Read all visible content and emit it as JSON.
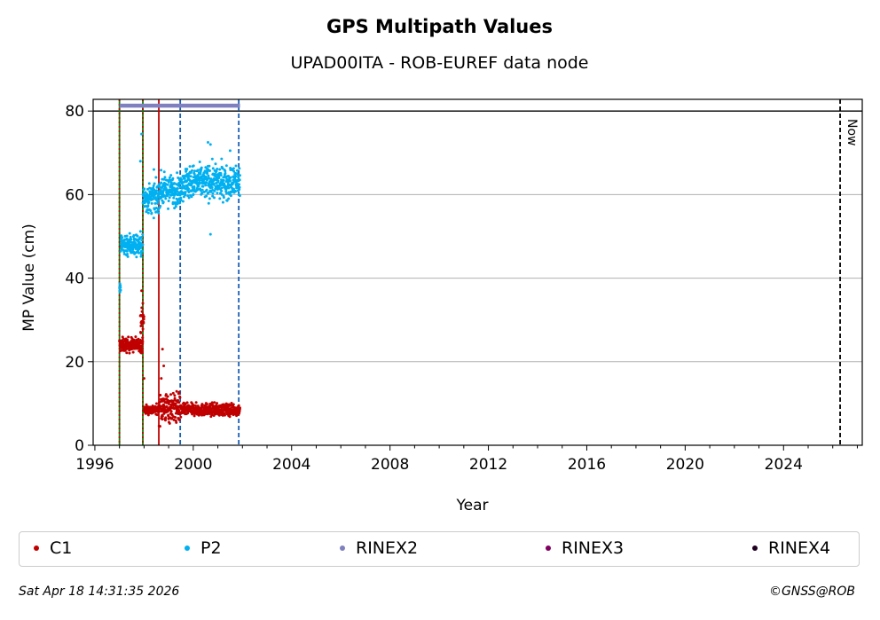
{
  "chart_data": {
    "type": "scatter",
    "title": "GPS Multipath Values",
    "subtitle": "UPAD00ITA - ROB-EUREF data node",
    "xlabel": "Year",
    "ylabel": "MP Value (cm)",
    "xlim": [
      1995.93,
      2027.2
    ],
    "ylim": [
      0,
      82.8
    ],
    "xticks": [
      1996,
      2000,
      2004,
      2008,
      2012,
      2016,
      2020,
      2024
    ],
    "xtick_labels": [
      "1996",
      "2000",
      "2004",
      "2008",
      "2012",
      "2016",
      "2020",
      "2024"
    ],
    "yticks": [
      0,
      20,
      40,
      60,
      80
    ],
    "ytick_labels": [
      "0",
      "20",
      "40",
      "60",
      "80"
    ],
    "grid": "horizontal",
    "reference_line": {
      "y": 80,
      "color": "#000000"
    },
    "now_line": {
      "x": 2026.3,
      "label": "Now",
      "color": "#000000"
    },
    "vertical_lines": [
      {
        "x": 1997.0,
        "color": "#008000",
        "style": "solid"
      },
      {
        "x": 1997.0,
        "color": "#c00000",
        "style": "dotted"
      },
      {
        "x": 1997.95,
        "color": "#008000",
        "style": "solid"
      },
      {
        "x": 1997.95,
        "color": "#c00000",
        "style": "dotted"
      },
      {
        "x": 1998.6,
        "color": "#c00000",
        "style": "solid"
      },
      {
        "x": 1999.47,
        "color": "#1a5fb4",
        "style": "dashed"
      },
      {
        "x": 2001.85,
        "color": "#1a5fb4",
        "style": "dashed"
      }
    ],
    "series": [
      {
        "name": "C1",
        "color": "#c00000",
        "segments": [
          {
            "x_start": 1997.0,
            "x_end": 1997.95,
            "mean": 24,
            "spread": 1.2
          },
          {
            "x_start": 1997.85,
            "x_end": 1998.0,
            "mean": 30,
            "spread": 2
          },
          {
            "x_start": 1998.0,
            "x_end": 1998.6,
            "mean": 8.5,
            "spread": 0.8
          },
          {
            "x_start": 1998.6,
            "x_end": 1999.5,
            "mean": 9,
            "spread": 2.5
          },
          {
            "x_start": 1999.5,
            "x_end": 2001.9,
            "mean": 8.5,
            "spread": 1
          }
        ],
        "outliers": [
          [
            1997.0,
            25
          ],
          [
            1997.9,
            37
          ],
          [
            1997.95,
            34
          ],
          [
            1998.0,
            16
          ],
          [
            1998.75,
            23
          ],
          [
            1998.8,
            19
          ],
          [
            1998.7,
            16
          ]
        ]
      },
      {
        "name": "P2",
        "color": "#00b0f0",
        "segments": [
          {
            "x_start": 1997.0,
            "x_end": 1997.05,
            "mean": 37.5,
            "spread": 1
          },
          {
            "x_start": 1997.05,
            "x_end": 1997.95,
            "mean": 48,
            "spread": 2
          },
          {
            "x_start": 1997.95,
            "x_end": 1998.6,
            "mean": 59,
            "spread": 2.5
          },
          {
            "x_start": 1998.6,
            "x_end": 1999.5,
            "mean": 61,
            "spread": 2.5
          },
          {
            "x_start": 1999.5,
            "x_end": 2001.9,
            "mean": 63,
            "spread": 2.8
          }
        ],
        "outliers": [
          [
            1997.9,
            74.5
          ],
          [
            1997.85,
            68
          ],
          [
            1998.4,
            66
          ],
          [
            2000.6,
            72.5
          ],
          [
            2000.7,
            72
          ],
          [
            2000.7,
            50.5
          ],
          [
            2001.5,
            70.5
          ],
          [
            1999.8,
            64
          ]
        ]
      },
      {
        "name": "RINEX2",
        "color": "#8080c0",
        "segments": [
          {
            "x_start": 1997.0,
            "x_end": 2001.9,
            "mean": 81.3,
            "spread": 0
          }
        ],
        "outliers": []
      },
      {
        "name": "RINEX3",
        "color": "#800060",
        "segments": [],
        "outliers": []
      },
      {
        "name": "RINEX4",
        "color": "#200020",
        "segments": [],
        "outliers": []
      }
    ],
    "legend": {
      "placement": "bottom",
      "entries": [
        "C1",
        "P2",
        "RINEX2",
        "RINEX3",
        "RINEX4"
      ]
    }
  },
  "footer": {
    "timestamp": "Sat Apr 18 14:31:35 2026",
    "credit": "©GNSS@ROB"
  }
}
